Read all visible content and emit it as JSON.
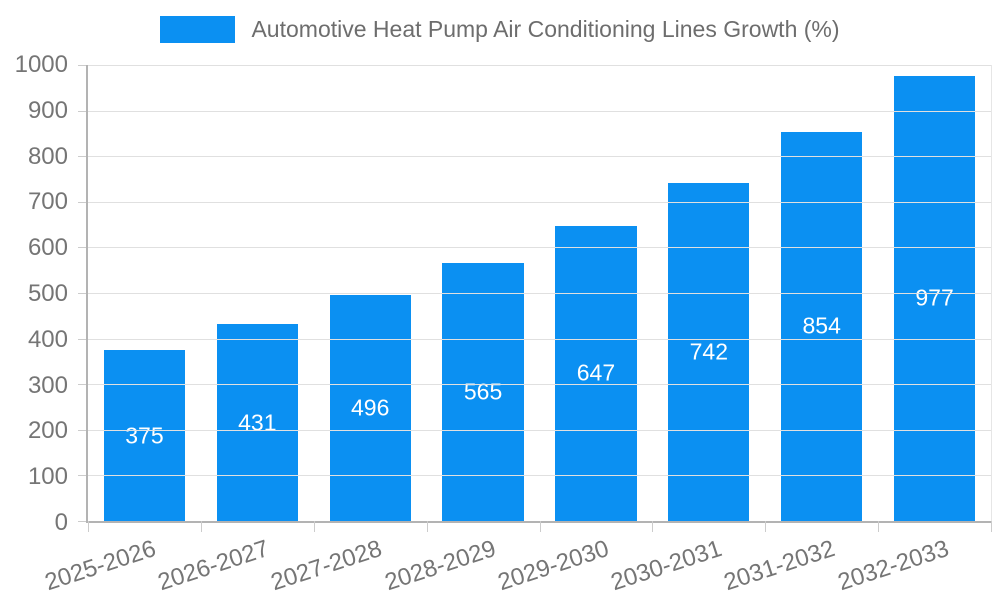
{
  "chart_data": {
    "type": "bar",
    "title": "",
    "categories": [
      "2025-2026",
      "2026-2027",
      "2027-2028",
      "2028-2029",
      "2029-2030",
      "2030-2031",
      "2031-2032",
      "2032-2033"
    ],
    "series": [
      {
        "name": "Automotive Heat Pump Air Conditioning Lines Growth (%)",
        "values": [
          375,
          431,
          496,
          565,
          647,
          742,
          854,
          977
        ]
      }
    ],
    "value_labels": [
      "375",
      "431",
      "496",
      "565",
      "647",
      "742",
      "854",
      "977"
    ],
    "xlabel": "",
    "ylabel": "",
    "ylim": [
      0,
      1000
    ],
    "yticks": [
      0,
      100,
      200,
      300,
      400,
      500,
      600,
      700,
      800,
      900,
      1000
    ],
    "grid": true,
    "legend_position": "top",
    "bar_color": "#0b90f2",
    "value_label_color": "#ffffff",
    "axis_line_color": "#b3b3b3",
    "gridline_color": "#e0e0e0",
    "tick_text_color": "#757575",
    "legend_text_color": "#6d6d6d"
  }
}
